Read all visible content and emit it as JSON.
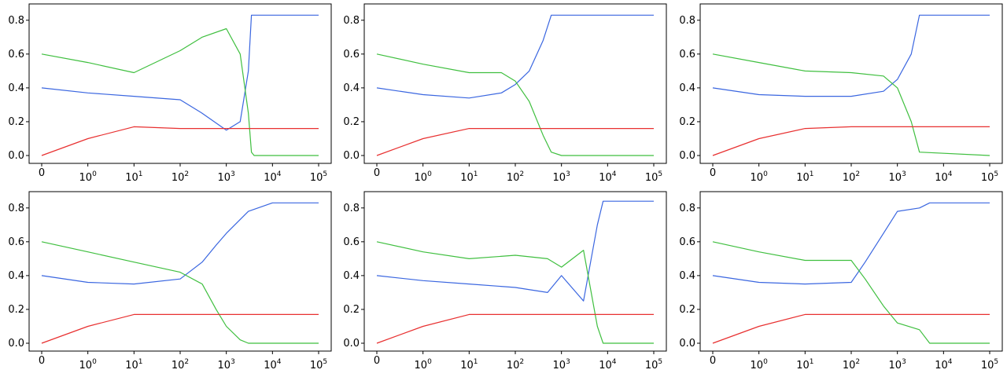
{
  "chart_data": [
    {
      "type": "line",
      "panel": "top-left",
      "xscale": "symlog",
      "xlim": [
        0,
        100000
      ],
      "ylim": [
        0,
        0.85
      ],
      "x_ticks": [
        "0",
        "10^0",
        "10^1",
        "10^2",
        "10^3",
        "10^4",
        "10^5"
      ],
      "y_ticks": [
        "0.0",
        "0.2",
        "0.4",
        "0.6",
        "0.8"
      ],
      "series": [
        {
          "color": "#3a66e0",
          "x": [
            0,
            1,
            10,
            100,
            300,
            1000,
            2000,
            3000,
            3500,
            4000,
            100000
          ],
          "y": [
            0.4,
            0.37,
            0.35,
            0.33,
            0.25,
            0.15,
            0.2,
            0.5,
            0.83,
            0.83,
            0.83
          ]
        },
        {
          "color": "#3fbf3f",
          "x": [
            0,
            1,
            10,
            100,
            300,
            1000,
            2000,
            3000,
            3500,
            4000,
            100000
          ],
          "y": [
            0.6,
            0.55,
            0.49,
            0.62,
            0.7,
            0.75,
            0.6,
            0.25,
            0.02,
            0.0,
            0.0
          ]
        },
        {
          "color": "#e83030",
          "x": [
            0,
            1,
            10,
            100,
            1000,
            100000
          ],
          "y": [
            0.0,
            0.1,
            0.17,
            0.16,
            0.16,
            0.16
          ]
        }
      ]
    },
    {
      "type": "line",
      "panel": "top-middle",
      "xscale": "symlog",
      "xlim": [
        0,
        100000
      ],
      "ylim": [
        0,
        0.85
      ],
      "x_ticks": [
        "0",
        "10^0",
        "10^1",
        "10^2",
        "10^3",
        "10^4",
        "10^5"
      ],
      "y_ticks": [
        "0.0",
        "0.2",
        "0.4",
        "0.6",
        "0.8"
      ],
      "series": [
        {
          "color": "#3a66e0",
          "x": [
            0,
            1,
            10,
            50,
            100,
            200,
            400,
            600,
            1000,
            100000
          ],
          "y": [
            0.4,
            0.36,
            0.34,
            0.37,
            0.42,
            0.5,
            0.68,
            0.83,
            0.83,
            0.83
          ]
        },
        {
          "color": "#3fbf3f",
          "x": [
            0,
            1,
            10,
            50,
            100,
            200,
            400,
            600,
            1000,
            100000
          ],
          "y": [
            0.6,
            0.54,
            0.49,
            0.49,
            0.44,
            0.32,
            0.12,
            0.02,
            0.0,
            0.0
          ]
        },
        {
          "color": "#e83030",
          "x": [
            0,
            1,
            10,
            100,
            1000,
            100000
          ],
          "y": [
            0.0,
            0.1,
            0.16,
            0.16,
            0.16,
            0.16
          ]
        }
      ]
    },
    {
      "type": "line",
      "panel": "top-right",
      "xscale": "symlog",
      "xlim": [
        0,
        100000
      ],
      "ylim": [
        0,
        0.85
      ],
      "x_ticks": [
        "0",
        "10^0",
        "10^1",
        "10^2",
        "10^3",
        "10^4",
        "10^5"
      ],
      "y_ticks": [
        "0.0",
        "0.2",
        "0.4",
        "0.6",
        "0.8"
      ],
      "series": [
        {
          "color": "#3a66e0",
          "x": [
            0,
            1,
            10,
            100,
            500,
            1000,
            2000,
            3000,
            100000
          ],
          "y": [
            0.4,
            0.36,
            0.35,
            0.35,
            0.38,
            0.45,
            0.6,
            0.83,
            0.83
          ]
        },
        {
          "color": "#3fbf3f",
          "x": [
            0,
            1,
            10,
            100,
            500,
            1000,
            2000,
            3000,
            100000
          ],
          "y": [
            0.6,
            0.55,
            0.5,
            0.49,
            0.47,
            0.4,
            0.2,
            0.02,
            0.0
          ]
        },
        {
          "color": "#e83030",
          "x": [
            0,
            1,
            10,
            100,
            1000,
            100000
          ],
          "y": [
            0.0,
            0.1,
            0.16,
            0.17,
            0.17,
            0.17
          ]
        }
      ]
    },
    {
      "type": "line",
      "panel": "bottom-left",
      "xscale": "symlog",
      "xlim": [
        0,
        100000
      ],
      "ylim": [
        0,
        0.85
      ],
      "x_ticks": [
        "0",
        "10^0",
        "10^1",
        "10^2",
        "10^3",
        "10^4",
        "10^5"
      ],
      "y_ticks": [
        "0.0",
        "0.2",
        "0.4",
        "0.6",
        "0.8"
      ],
      "series": [
        {
          "color": "#3a66e0",
          "x": [
            0,
            1,
            10,
            100,
            300,
            600,
            1000,
            3000,
            10000,
            100000
          ],
          "y": [
            0.4,
            0.36,
            0.35,
            0.38,
            0.48,
            0.58,
            0.65,
            0.78,
            0.83,
            0.83
          ]
        },
        {
          "color": "#3fbf3f",
          "x": [
            0,
            1,
            10,
            100,
            300,
            600,
            1000,
            2000,
            3000,
            100000
          ],
          "y": [
            0.6,
            0.54,
            0.48,
            0.42,
            0.35,
            0.2,
            0.1,
            0.02,
            0.0,
            0.0
          ]
        },
        {
          "color": "#e83030",
          "x": [
            0,
            1,
            10,
            100,
            1000,
            100000
          ],
          "y": [
            0.0,
            0.1,
            0.17,
            0.17,
            0.17,
            0.17
          ]
        }
      ]
    },
    {
      "type": "line",
      "panel": "bottom-middle",
      "xscale": "symlog",
      "xlim": [
        0,
        100000
      ],
      "ylim": [
        0,
        0.85
      ],
      "x_ticks": [
        "0",
        "10^0",
        "10^1",
        "10^2",
        "10^3",
        "10^4",
        "10^5"
      ],
      "y_ticks": [
        "0.0",
        "0.2",
        "0.4",
        "0.6",
        "0.8"
      ],
      "series": [
        {
          "color": "#3a66e0",
          "x": [
            0,
            1,
            10,
            100,
            500,
            1000,
            3000,
            6000,
            8000,
            100000
          ],
          "y": [
            0.4,
            0.37,
            0.35,
            0.33,
            0.3,
            0.4,
            0.25,
            0.7,
            0.84,
            0.84
          ]
        },
        {
          "color": "#3fbf3f",
          "x": [
            0,
            1,
            10,
            100,
            500,
            1000,
            3000,
            6000,
            8000,
            100000
          ],
          "y": [
            0.6,
            0.54,
            0.5,
            0.52,
            0.5,
            0.45,
            0.55,
            0.1,
            0.0,
            0.0
          ]
        },
        {
          "color": "#e83030",
          "x": [
            0,
            1,
            10,
            100,
            1000,
            100000
          ],
          "y": [
            0.0,
            0.1,
            0.17,
            0.17,
            0.17,
            0.17
          ]
        }
      ]
    },
    {
      "type": "line",
      "panel": "bottom-right",
      "xscale": "symlog",
      "xlim": [
        0,
        100000
      ],
      "ylim": [
        0,
        0.85
      ],
      "x_ticks": [
        "0",
        "10^0",
        "10^1",
        "10^2",
        "10^3",
        "10^4",
        "10^5"
      ],
      "y_ticks": [
        "0.0",
        "0.2",
        "0.4",
        "0.6",
        "0.8"
      ],
      "series": [
        {
          "color": "#3a66e0",
          "x": [
            0,
            1,
            10,
            100,
            200,
            500,
            1000,
            3000,
            5000,
            100000
          ],
          "y": [
            0.4,
            0.36,
            0.35,
            0.36,
            0.48,
            0.65,
            0.78,
            0.8,
            0.83,
            0.83
          ]
        },
        {
          "color": "#3fbf3f",
          "x": [
            0,
            1,
            10,
            100,
            200,
            500,
            1000,
            3000,
            5000,
            100000
          ],
          "y": [
            0.6,
            0.54,
            0.49,
            0.49,
            0.38,
            0.22,
            0.12,
            0.08,
            0.0,
            0.0
          ]
        },
        {
          "color": "#e83030",
          "x": [
            0,
            1,
            10,
            100,
            1000,
            100000
          ],
          "y": [
            0.0,
            0.1,
            0.17,
            0.17,
            0.17,
            0.17
          ]
        }
      ]
    }
  ]
}
